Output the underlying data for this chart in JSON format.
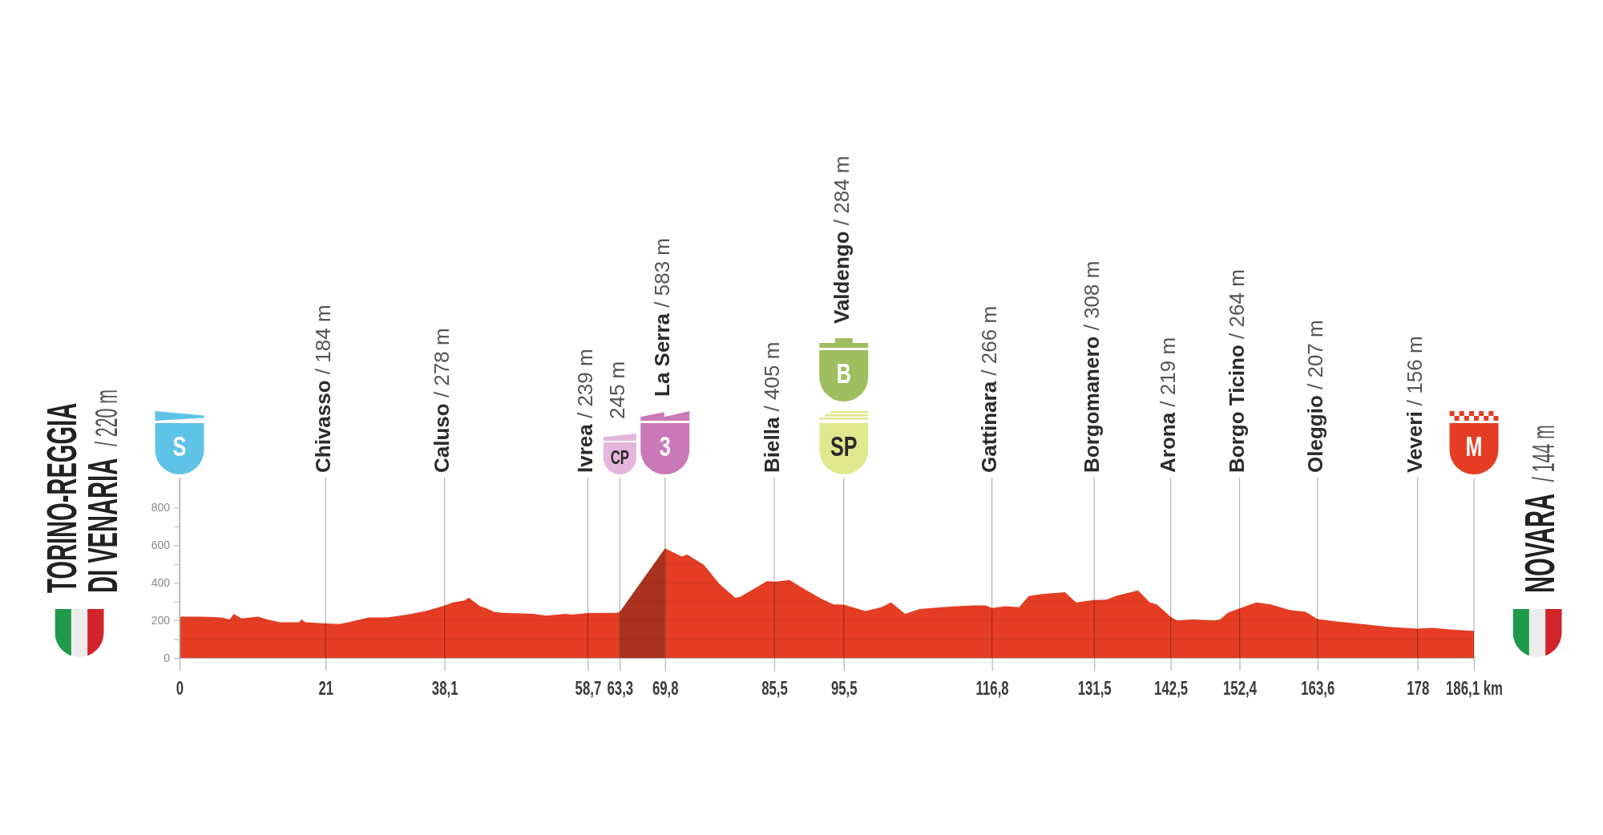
{
  "chart_data": {
    "type": "area",
    "xlim": [
      0,
      186.1
    ],
    "xticks": [
      0,
      21,
      {
        "value": 38.1,
        "label": "38,1"
      },
      {
        "value": 58.7,
        "label": "58,7"
      },
      {
        "value": 63.3,
        "label": "63,3"
      },
      {
        "value": 69.8,
        "label": "69,8"
      },
      {
        "value": 85.5,
        "label": "85,5"
      },
      {
        "value": 95.5,
        "label": "95,5"
      },
      {
        "value": 116.8,
        "label": "116,8"
      },
      {
        "value": 131.5,
        "label": "131,5"
      },
      {
        "value": 142.5,
        "label": "142,5"
      },
      {
        "value": 152.4,
        "label": "152,4"
      },
      {
        "value": 163.6,
        "label": "163,6"
      },
      178,
      {
        "value": 186.1,
        "label": "186,1 km"
      }
    ],
    "ylim": [
      0,
      960
    ],
    "yticks": [
      0,
      {
        "value": 100,
        "label": null
      },
      200,
      {
        "value": 300,
        "label": null
      },
      400,
      {
        "value": 500,
        "label": null
      },
      600,
      {
        "value": 700,
        "label": null
      },
      800
    ],
    "grid": true,
    "series": [
      {
        "color": "#e43d24",
        "x": [
          0,
          3,
          6,
          7.2,
          7.8,
          8.9,
          11.3,
          12.6,
          14.4,
          17.2,
          17.5,
          18.1,
          21,
          22.9,
          23.6,
          25.4,
          27.2,
          29.9,
          32.7,
          35.4,
          38.1,
          39.3,
          40.9,
          41.6,
          43.2,
          44.1,
          45.2,
          46.4,
          50.9,
          52.7,
          55.5,
          56.4,
          58.7,
          62.8,
          63.3
        ],
        "values": [
          220,
          220,
          215,
          205,
          235,
          210,
          220,
          205,
          190,
          190,
          205,
          190,
          184,
          180,
          185,
          200,
          215,
          215,
          230,
          250,
          278,
          295,
          305,
          320,
          275,
          265,
          245,
          240,
          235,
          225,
          235,
          230,
          239,
          240,
          245
        ]
      },
      {
        "color": "#a9311d",
        "x": [
          63.3,
          69.8
        ],
        "values": [
          245,
          583
        ]
      },
      {
        "color": "#e43d24",
        "x": [
          69.8,
          72.2,
          73.0,
          75.4,
          77.6,
          79.9,
          80.6,
          82.2,
          84.5,
          85.5,
          87.7,
          89.9,
          92.5,
          94.0,
          95.5,
          98.6,
          100.9,
          102.3,
          104.3,
          106.4,
          109.5,
          111.8,
          114.1,
          115.9,
          116.8,
          118.7,
          120.7,
          122.1,
          124.1,
          127.3,
          128.9,
          131.5,
          133.3,
          134.6,
          137.8,
          139.5,
          140.5,
          142.5,
          143.4,
          145.7,
          148.8,
          149.6,
          150.7,
          152.4,
          154.8,
          156.9,
          159.6,
          161.9,
          163.6,
          166.1,
          170,
          173.8,
          178,
          180,
          183.1,
          186.1
        ],
        "values": [
          583,
          540,
          550,
          495,
          395,
          320,
          325,
          360,
          410,
          405,
          415,
          365,
          310,
          285,
          284,
          250,
          270,
          295,
          235,
          260,
          270,
          275,
          280,
          280,
          266,
          275,
          270,
          330,
          340,
          350,
          295,
          308,
          310,
          330,
          360,
          295,
          285,
          219,
          200,
          205,
          200,
          205,
          240,
          264,
          295,
          285,
          255,
          245,
          207,
          195,
          180,
          165,
          156,
          160,
          150,
          144
        ]
      }
    ],
    "annotations": [
      "TORINO-REGGIA\nDI VENARIA / 220 m",
      "NOVARA / 144 m",
      "S",
      "CP",
      "3",
      "SP",
      "B",
      "M",
      "Chivasso / 184 m",
      "Caluso / 278 m",
      "Ivrea / 239 m",
      "245 m",
      "La Serra / 583 m",
      "Biella / 405 m",
      "Valdengo / 284 m",
      "Gattinara / 266 m",
      "Borgomanero / 308 m",
      "Arona / 219 m",
      "Borgo Ticino / 264 m",
      "Oleggio / 207 m",
      "Veveri / 156 m"
    ]
  }
}
